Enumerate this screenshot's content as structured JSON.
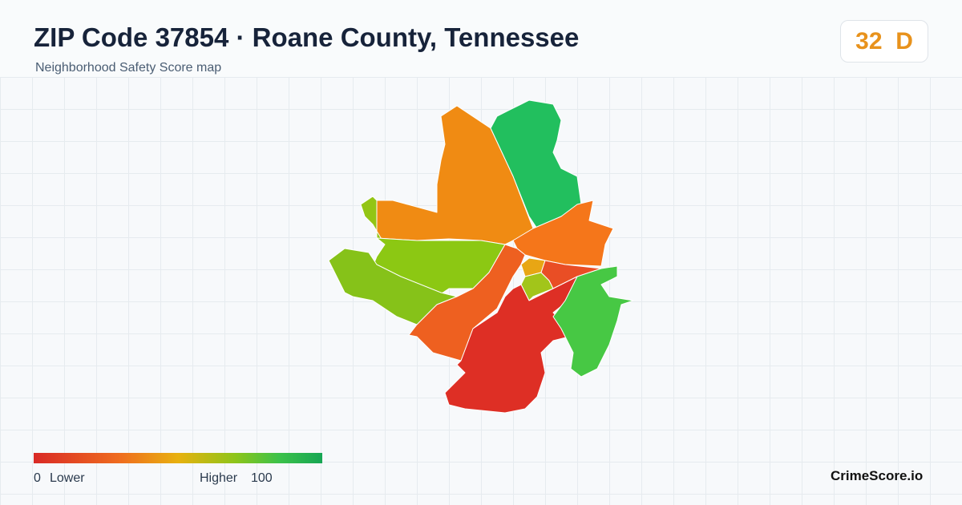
{
  "header": {
    "title": "ZIP Code 37854 · Roane County, Tennessee",
    "subtitle": "Neighborhood Safety Score map"
  },
  "score": {
    "value": "32",
    "grade": "D"
  },
  "legend": {
    "min": "0",
    "min_label": "Lower",
    "max_label": "Higher",
    "max": "100"
  },
  "brand": "CrimeScore.io"
}
